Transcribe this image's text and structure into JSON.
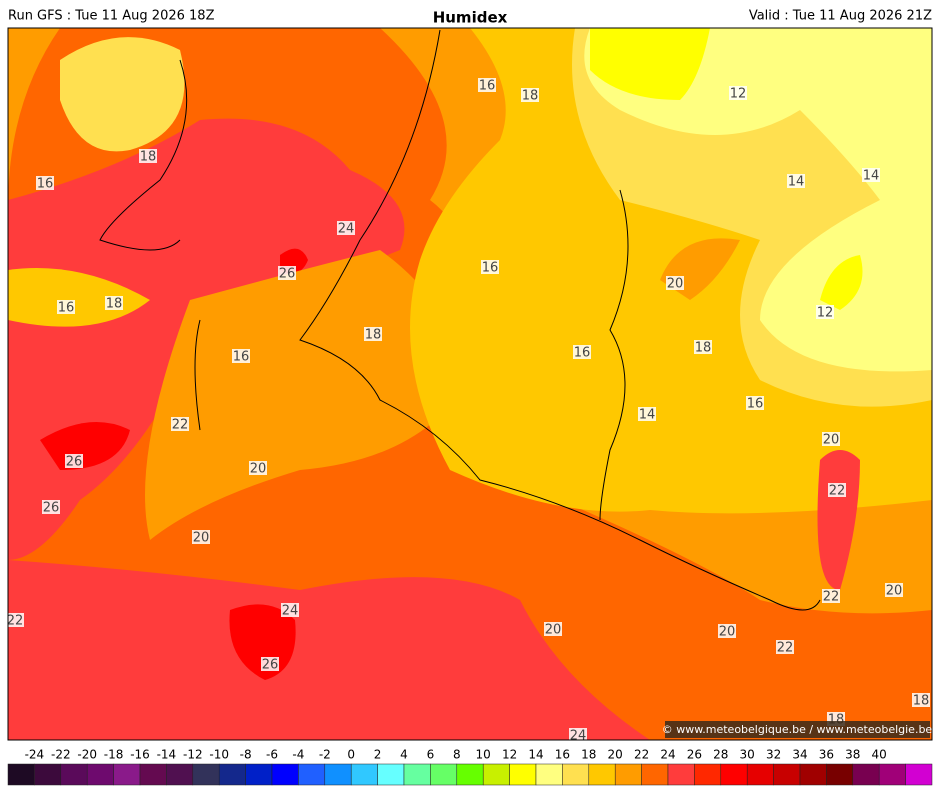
{
  "header": {
    "left": "Run GFS : Tue 11 Aug 2026 18Z",
    "title": "Humidex",
    "right": "Valid : Tue 11 Aug 2026 21Z"
  },
  "contour_labels": [
    16,
    18,
    12,
    18,
    16,
    14,
    14,
    24,
    26,
    16,
    20,
    16,
    18,
    12,
    18,
    18,
    16,
    16,
    16,
    14,
    22,
    20,
    26,
    20,
    22,
    26,
    20,
    22,
    20,
    24,
    22,
    20,
    20,
    22,
    26,
    18,
    18,
    24
  ],
  "copyright": "© www.meteobelgique.be / www.meteobelgie.be",
  "colorbar": {
    "ticks": [
      -24,
      -22,
      -20,
      -18,
      -16,
      -14,
      -12,
      -10,
      -8,
      -6,
      -4,
      -2,
      0,
      2,
      4,
      6,
      8,
      10,
      12,
      14,
      16,
      18,
      20,
      22,
      24,
      26,
      28,
      30,
      32,
      34,
      36,
      38,
      40
    ],
    "colors": [
      "#1e0a24",
      "#3c0a3c",
      "#5a0a5a",
      "#6e0a6e",
      "#8a1a8a",
      "#640a50",
      "#501050",
      "#32325a",
      "#14288c",
      "#0020c8",
      "#0000ff",
      "#2060ff",
      "#1090ff",
      "#30c8ff",
      "#66ffff",
      "#66ffa0",
      "#66ff66",
      "#66ff00",
      "#c8f000",
      "#ffff00",
      "#ffff80",
      "#ffe050",
      "#ffc800",
      "#ff9c00",
      "#ff6600",
      "#ff3c3c",
      "#ff2800",
      "#ff0000",
      "#e60000",
      "#c80000",
      "#a00000",
      "#780000",
      "#780050",
      "#a00078",
      "#d200d2"
    ]
  }
}
